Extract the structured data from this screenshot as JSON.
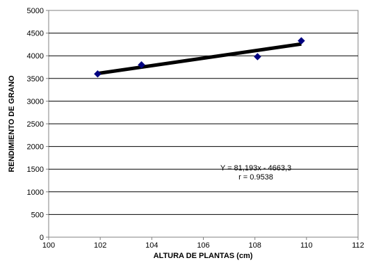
{
  "chart_data": {
    "type": "scatter",
    "title": "",
    "xlabel": "ALTURA DE PLANTAS (cm)",
    "ylabel": "RENDIMIENTO DE GRANO",
    "xlim": [
      100,
      112
    ],
    "ylim": [
      0,
      5000
    ],
    "x_ticks": [
      100,
      102,
      104,
      106,
      108,
      110,
      112
    ],
    "y_ticks": [
      0,
      500,
      1000,
      1500,
      2000,
      2500,
      3000,
      3500,
      4000,
      4500,
      5000
    ],
    "grid": "horizontal",
    "series": [
      {
        "type": "scatter",
        "marker": "diamond",
        "color": "#000080",
        "x": [
          101.9,
          103.6,
          108.1,
          109.8
        ],
        "y": [
          3600,
          3800,
          3980,
          4330
        ]
      },
      {
        "type": "trendline",
        "color": "#000000",
        "x": [
          101.9,
          109.8
        ],
        "y": [
          3610,
          4260
        ]
      }
    ],
    "annotations": {
      "equation": "Y = 81,193x - 4663,3",
      "r_value": "r = 0.9538"
    }
  }
}
